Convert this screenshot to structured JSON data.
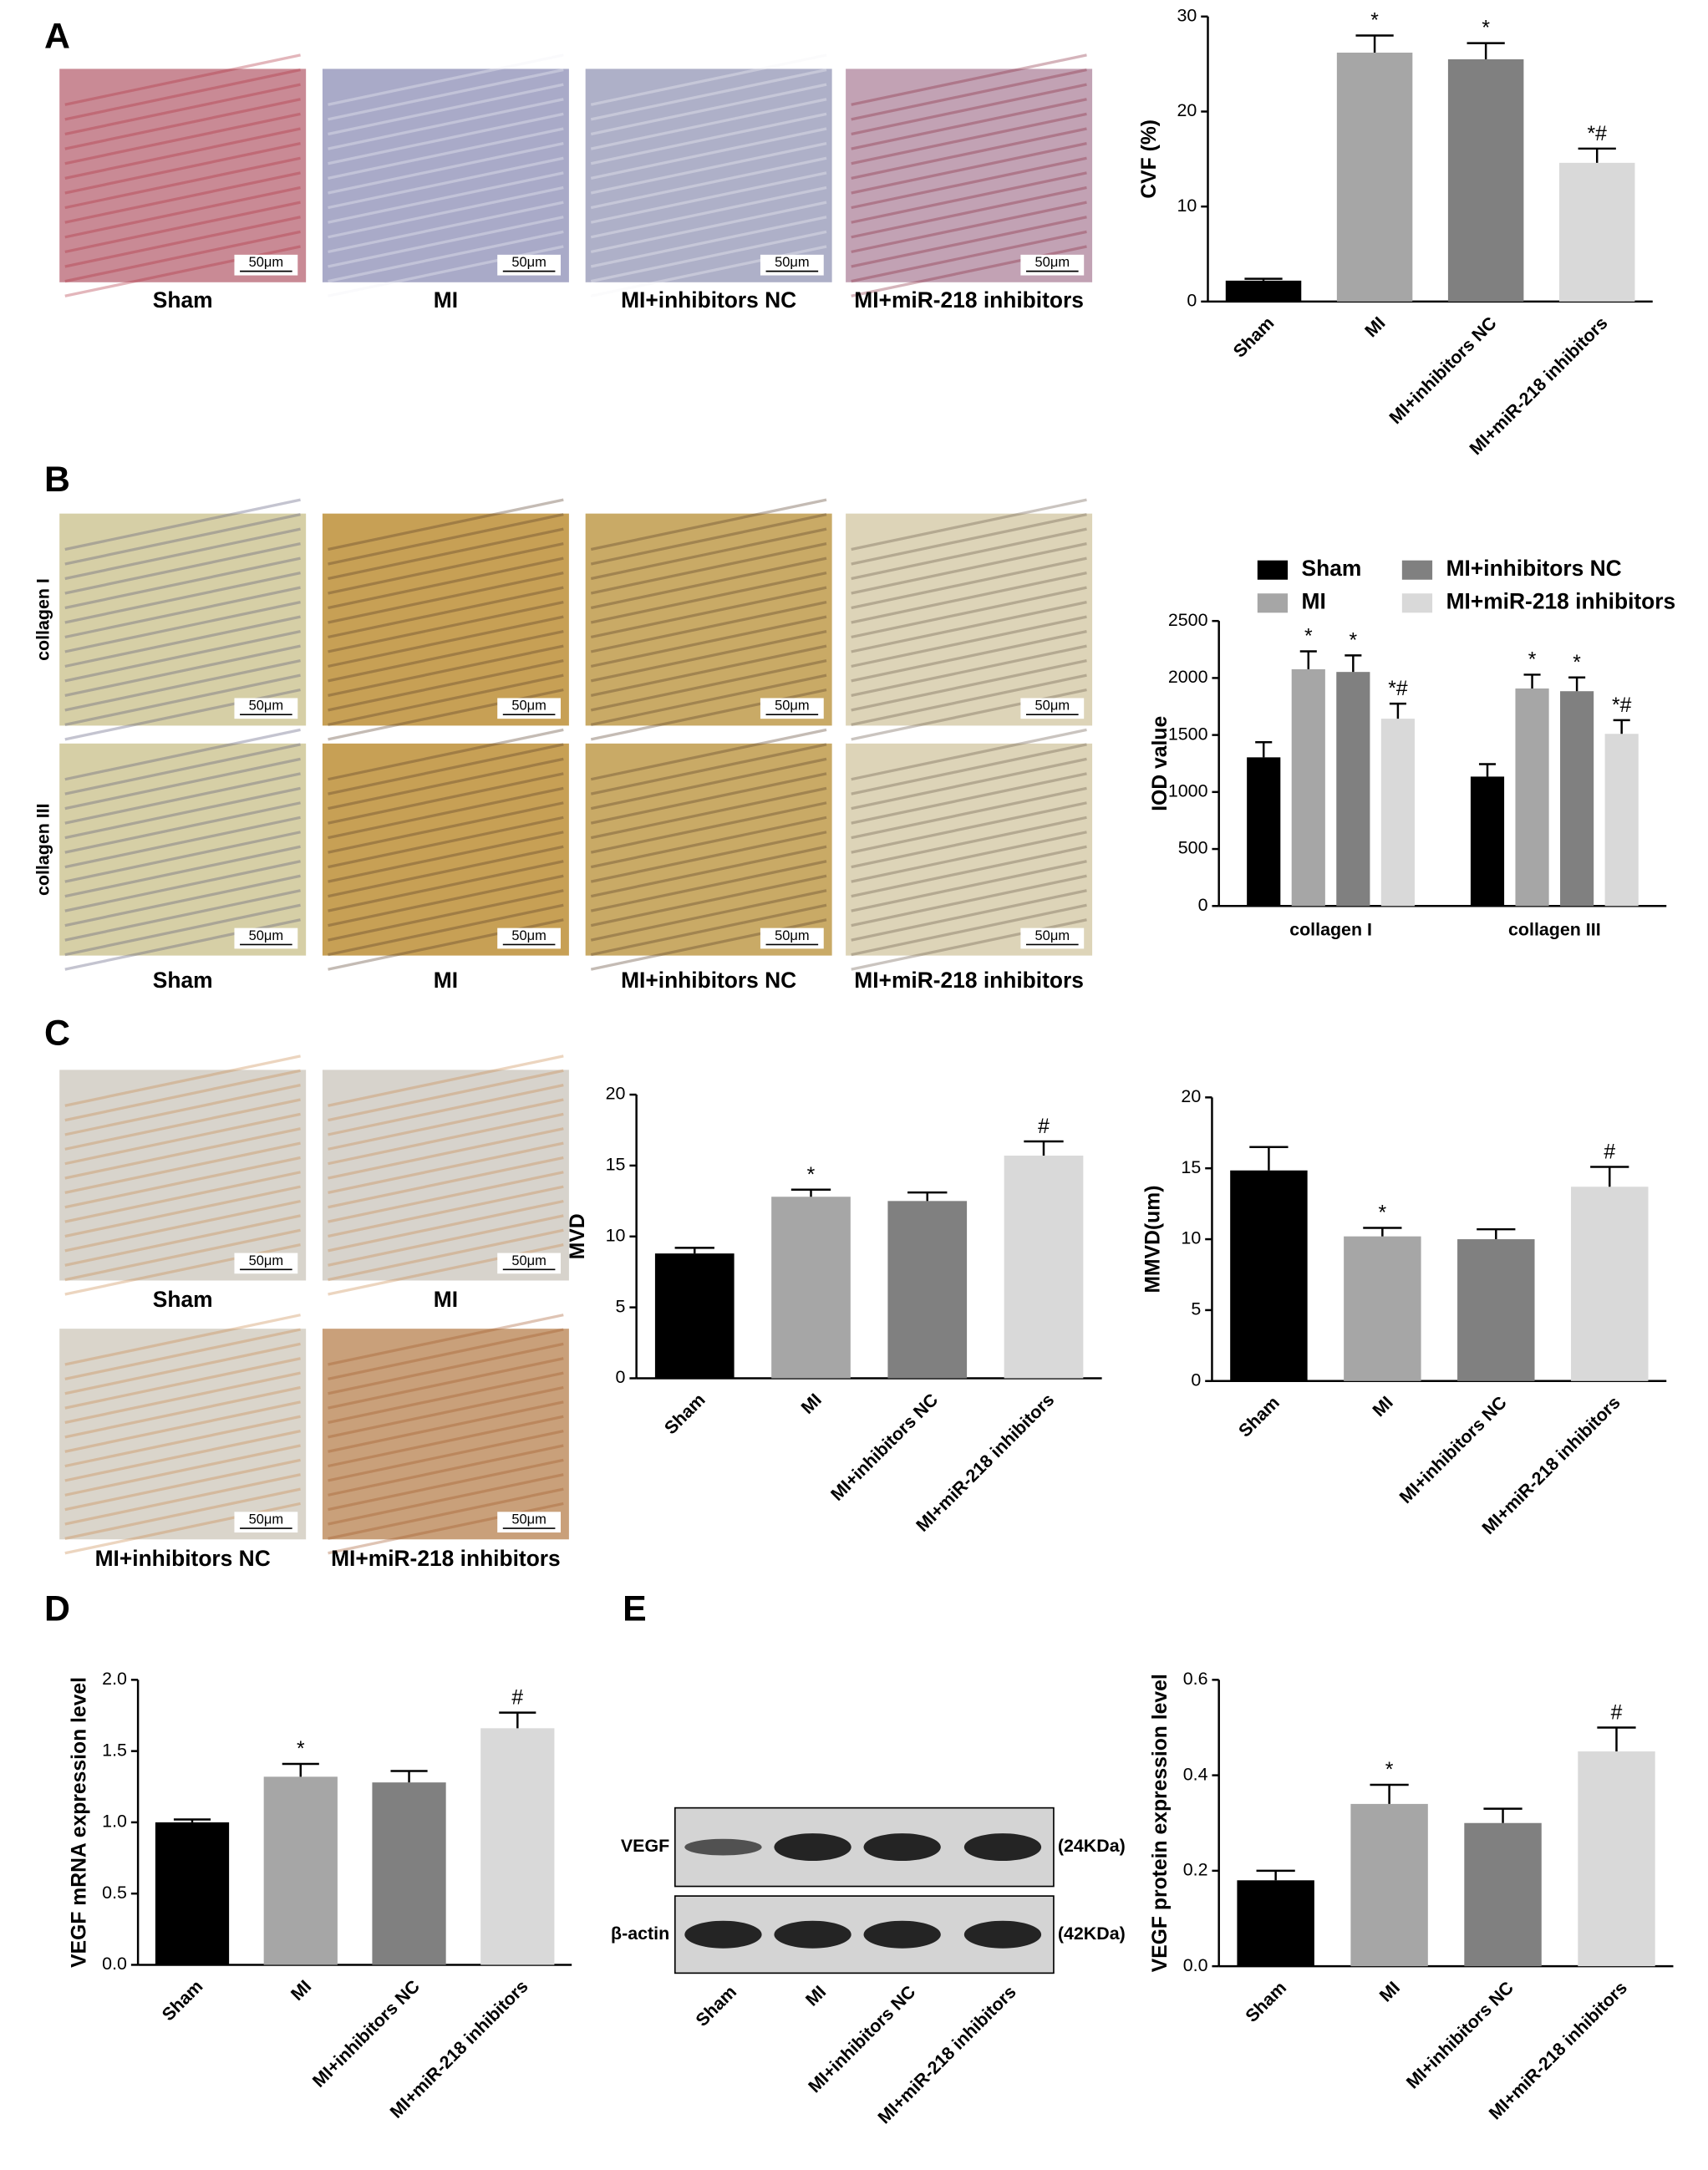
{
  "panels": [
    "A",
    "B",
    "C",
    "D",
    "E"
  ],
  "scale_bar": "50μm",
  "groups": [
    "Sham",
    "MI",
    "MI+inhibitors NC",
    "MI+miR-218 inhibitors"
  ],
  "row_labels": [
    "collagen I",
    "collagen III"
  ],
  "blot": {
    "rows": [
      "VEGF",
      "β-actin"
    ],
    "sizes": [
      "(24KDa)",
      "(42KDa)"
    ],
    "lanes": [
      "Sham",
      "MI",
      "MI+inhibitors NC",
      "MI+miR-218 inhibitors"
    ]
  },
  "chart_data": [
    {
      "type": "bar",
      "ylabel": "CVF (%)",
      "categories": [
        "Sham",
        "MI",
        "MI+inhibitors NC",
        "MI+miR-218 inhibitors"
      ],
      "values": [
        2.2,
        26.2,
        25.5,
        14.6
      ],
      "errors": [
        0.2,
        1.8,
        1.7,
        1.5
      ],
      "annotations": [
        null,
        "*",
        "*",
        "*#"
      ],
      "colors": [
        "#000000",
        "#a6a6a6",
        "#808080",
        "#d9d9d9"
      ],
      "ylim": [
        0,
        30
      ],
      "yticks": [
        0,
        10,
        20,
        30
      ]
    },
    {
      "type": "bar",
      "ylabel": "IOD value",
      "categories": [
        "collagen I",
        "collagen III"
      ],
      "legend": "top",
      "series": [
        {
          "name": "Sham",
          "color": "#000000",
          "values": [
            1304,
            1135
          ],
          "errors": [
            133,
            109
          ],
          "annotations": [
            null,
            null
          ]
        },
        {
          "name": "MI",
          "color": "#a6a6a6",
          "values": [
            2077,
            1908
          ],
          "errors": [
            157,
            121
          ],
          "annotations": [
            "*",
            "*"
          ]
        },
        {
          "name": "MI+inhibitors NC",
          "color": "#808080",
          "values": [
            2053,
            1884
          ],
          "errors": [
            145,
            121
          ],
          "annotations": [
            "*",
            "*"
          ]
        },
        {
          "name": "MI+miR-218 inhibitors",
          "color": "#d9d9d9",
          "values": [
            1643,
            1510
          ],
          "errors": [
            132,
            120
          ],
          "annotations": [
            "*#",
            "*#"
          ]
        }
      ],
      "ylim": [
        0,
        2500
      ],
      "yticks": [
        0,
        500,
        1000,
        1500,
        2000,
        2500
      ]
    },
    {
      "type": "bar",
      "ylabel": "MVD",
      "categories": [
        "Sham",
        "MI",
        "MI+inhibitors NC",
        "MI+miR-218 inhibitors"
      ],
      "values": [
        8.8,
        12.8,
        12.5,
        15.7
      ],
      "errors": [
        0.4,
        0.5,
        0.6,
        1.0
      ],
      "annotations": [
        null,
        "*",
        null,
        "#"
      ],
      "colors": [
        "#000000",
        "#a6a6a6",
        "#808080",
        "#d9d9d9"
      ],
      "ylim": [
        0,
        20
      ],
      "yticks": [
        0,
        5,
        10,
        15,
        20
      ]
    },
    {
      "type": "bar",
      "ylabel": "MMVD(um)",
      "categories": [
        "Sham",
        "MI",
        "MI+inhibitors NC",
        "MI+miR-218 inhibitors"
      ],
      "values": [
        14.85,
        10.2,
        10.0,
        13.7
      ],
      "errors": [
        1.65,
        0.6,
        0.7,
        1.4
      ],
      "annotations": [
        null,
        "*",
        null,
        "#"
      ],
      "colors": [
        "#000000",
        "#a6a6a6",
        "#808080",
        "#d9d9d9"
      ],
      "ylim": [
        0,
        20
      ],
      "yticks": [
        0,
        5,
        10,
        15,
        20
      ]
    },
    {
      "type": "bar",
      "ylabel": "VEGF mRNA expression level",
      "categories": [
        "Sham",
        "MI",
        "MI+inhibitors NC",
        "MI+miR-218 inhibitors"
      ],
      "values": [
        1.0,
        1.32,
        1.28,
        1.66
      ],
      "errors": [
        0.02,
        0.09,
        0.08,
        0.11
      ],
      "annotations": [
        null,
        "*",
        null,
        "#"
      ],
      "colors": [
        "#000000",
        "#a6a6a6",
        "#808080",
        "#d9d9d9"
      ],
      "ylim": [
        0,
        2
      ],
      "yticks": [
        {
          "value": 0,
          "label": "0.0"
        },
        0.5,
        {
          "value": 1,
          "label": "1.0"
        },
        1.5,
        {
          "value": 2,
          "label": "2.0"
        }
      ]
    },
    {
      "type": "bar",
      "ylabel": "VEGF protein expression level",
      "categories": [
        "Sham",
        "MI",
        "MI+inhibitors NC",
        "MI+miR-218 inhibitors"
      ],
      "values": [
        0.18,
        0.34,
        0.3,
        0.45
      ],
      "errors": [
        0.02,
        0.04,
        0.03,
        0.05
      ],
      "annotations": [
        null,
        "*",
        null,
        "#"
      ],
      "colors": [
        "#000000",
        "#a6a6a6",
        "#808080",
        "#d9d9d9"
      ],
      "ylim": [
        0,
        0.6
      ],
      "yticks": [
        {
          "value": 0,
          "label": "0.0"
        },
        0.2,
        0.4,
        0.6
      ]
    }
  ]
}
